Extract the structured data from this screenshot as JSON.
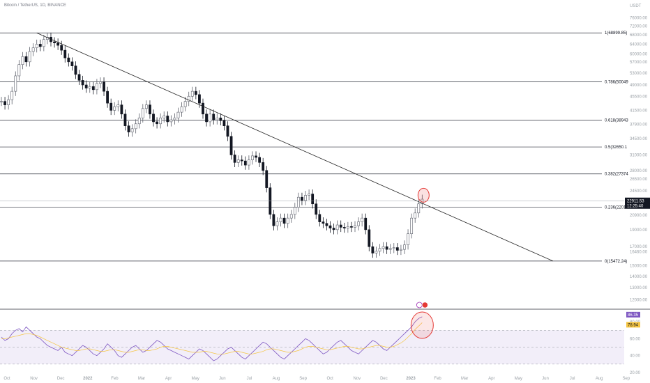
{
  "chart_title": "Bitcoin / TetherUS, 1D, BINANCE",
  "currency": "USDT",
  "chart_data": [
    {
      "type": "candlestick",
      "title": "Bitcoin / TetherUS, 1D, BINANCE",
      "y_scale": "log",
      "ylim": [
        11500,
        78000
      ],
      "y_ticks": [
        "76000.00",
        "72000.00",
        "68000.00",
        "64000.00",
        "60000.00",
        "57000.00",
        "53000.00",
        "49000.00",
        "45500.00",
        "41500.00",
        "37900.00",
        "34500.00",
        "31000.00",
        "28000.00",
        "26500.00",
        "24500.00",
        "20900.00",
        "19000.00",
        "17000.00",
        "16460.00",
        "15000.00",
        "14000.00",
        "13000.00",
        "12000.00"
      ],
      "x_ticks": [
        "Oct",
        "Nov",
        "Dec",
        "2022",
        "Feb",
        "Mar",
        "Apr",
        "May",
        "Jun",
        "Jul",
        "Aug",
        "Sep",
        "Oct",
        "Nov",
        "Dec",
        "2023",
        "Feb",
        "Mar",
        "Apr",
        "May",
        "Jun",
        "Jul",
        "Aug",
        "Sep"
      ],
      "series_close_path": [
        [
          0,
          44000
        ],
        [
          1,
          43000
        ],
        [
          2,
          44500
        ],
        [
          3,
          47000
        ],
        [
          4,
          52000
        ],
        [
          5,
          56000
        ],
        [
          6,
          59000
        ],
        [
          7,
          57000
        ],
        [
          8,
          61000
        ],
        [
          9,
          62500
        ],
        [
          10,
          64000
        ],
        [
          11,
          63000
        ],
        [
          12,
          66000
        ],
        [
          13,
          67000
        ],
        [
          14,
          65000
        ],
        [
          15,
          64500
        ],
        [
          16,
          63500
        ],
        [
          17,
          61500
        ],
        [
          18,
          58500
        ],
        [
          19,
          57000
        ],
        [
          20,
          55500
        ],
        [
          21,
          52500
        ],
        [
          22,
          50500
        ],
        [
          23,
          49000
        ],
        [
          24,
          48000
        ],
        [
          25,
          48500
        ],
        [
          26,
          47500
        ],
        [
          27,
          49500
        ],
        [
          28,
          50000
        ],
        [
          29,
          47000
        ],
        [
          30,
          43500
        ],
        [
          31,
          41500
        ],
        [
          32,
          42500
        ],
        [
          33,
          43000
        ],
        [
          34,
          40500
        ],
        [
          35,
          37500
        ],
        [
          36,
          36000
        ],
        [
          37,
          36800
        ],
        [
          38,
          38000
        ],
        [
          39,
          39500
        ],
        [
          40,
          42000
        ],
        [
          41,
          43000
        ],
        [
          42,
          40500
        ],
        [
          43,
          38500
        ],
        [
          44,
          38000
        ],
        [
          45,
          39500
        ],
        [
          46,
          40000
        ],
        [
          47,
          38500
        ],
        [
          48,
          39000
        ],
        [
          49,
          39500
        ],
        [
          50,
          41000
        ],
        [
          51,
          42500
        ],
        [
          52,
          44000
        ],
        [
          53,
          45500
        ],
        [
          54,
          47000
        ],
        [
          55,
          46000
        ],
        [
          56,
          43500
        ],
        [
          57,
          40500
        ],
        [
          58,
          38500
        ],
        [
          59,
          40500
        ],
        [
          60,
          39000
        ],
        [
          61,
          39500
        ],
        [
          62,
          38800
        ],
        [
          63,
          37500
        ],
        [
          64,
          35000
        ],
        [
          65,
          31000
        ],
        [
          66,
          29500
        ],
        [
          67,
          30000
        ],
        [
          68,
          29800
        ],
        [
          69,
          29000
        ],
        [
          70,
          30000
        ],
        [
          71,
          30800
        ],
        [
          72,
          30500
        ],
        [
          73,
          29500
        ],
        [
          74,
          28000
        ],
        [
          75,
          25000
        ],
        [
          76,
          21000
        ],
        [
          77,
          19500
        ],
        [
          78,
          20000
        ],
        [
          79,
          20500
        ],
        [
          80,
          19800
        ],
        [
          81,
          20500
        ],
        [
          82,
          21000
        ],
        [
          83,
          22000
        ],
        [
          84,
          23500
        ],
        [
          85,
          23000
        ],
        [
          86,
          23800
        ],
        [
          87,
          24000
        ],
        [
          88,
          22500
        ],
        [
          89,
          21000
        ],
        [
          90,
          20000
        ],
        [
          91,
          19800
        ],
        [
          92,
          19500
        ],
        [
          93,
          19200
        ],
        [
          94,
          19000
        ],
        [
          95,
          19600
        ],
        [
          96,
          19300
        ],
        [
          97,
          19200
        ],
        [
          98,
          19400
        ],
        [
          99,
          19300
        ],
        [
          100,
          19500
        ],
        [
          101,
          20000
        ],
        [
          102,
          20500
        ],
        [
          103,
          19000
        ],
        [
          104,
          17000
        ],
        [
          105,
          16300
        ],
        [
          106,
          16500
        ],
        [
          107,
          16800
        ],
        [
          108,
          17000
        ],
        [
          109,
          16700
        ],
        [
          110,
          16800
        ],
        [
          111,
          16900
        ],
        [
          112,
          16600
        ],
        [
          113,
          16700
        ],
        [
          114,
          17200
        ],
        [
          115,
          18500
        ],
        [
          116,
          20500
        ],
        [
          117,
          21200
        ],
        [
          118,
          22500
        ],
        [
          119,
          23200
        ]
      ],
      "fib_levels": [
        {
          "label": "1(68899.85)",
          "value": 68899.85
        },
        {
          "label": "0.786(50049",
          "value": 50049
        },
        {
          "label": "0.618(38943",
          "value": 38943
        },
        {
          "label": "0.5(32650.1",
          "value": 32650.1
        },
        {
          "label": "0.382(27374",
          "value": 27374
        },
        {
          "label": "0.236(22010",
          "value": 22010
        },
        {
          "label": "0(15472.24)",
          "value": 15472.24
        }
      ],
      "trendline": {
        "from": {
          "t": 10,
          "price": 68899.85
        },
        "to": {
          "t": 173,
          "price": 15472.24
        }
      },
      "last_price": {
        "label": "22911.53",
        "value": 22911.53,
        "timer": "12:25:40"
      },
      "annotations": [
        {
          "type": "circle",
          "color": "#e53935",
          "target": "price breakout at trendline"
        }
      ]
    },
    {
      "type": "line",
      "title": "",
      "panel": "RSI",
      "ylim": [
        20,
        90
      ],
      "y_ticks": [
        "80.00",
        "60.00",
        "40.00",
        "20.00"
      ],
      "bands": {
        "upper": 70,
        "lower": 30,
        "mid": 50
      },
      "series": [
        {
          "name": "",
          "color": "#7e57c2",
          "last_value_label": "86.35",
          "values": [
            62,
            58,
            60,
            66,
            70,
            72,
            68,
            74,
            70,
            66,
            62,
            60,
            56,
            52,
            50,
            48,
            46,
            50,
            44,
            42,
            40,
            44,
            48,
            52,
            50,
            46,
            42,
            40,
            44,
            48,
            54,
            50,
            46,
            40,
            38,
            42,
            46,
            50,
            52,
            48,
            44,
            46,
            50,
            54,
            58,
            56,
            52,
            48,
            46,
            44,
            42,
            40,
            38,
            36,
            40,
            44,
            48,
            46,
            42,
            38,
            34,
            36,
            40,
            44,
            48,
            50,
            46,
            42,
            38,
            36,
            40,
            44,
            48,
            52,
            56,
            54,
            50,
            46,
            42,
            38,
            36,
            40,
            44,
            48,
            52,
            56,
            60,
            58,
            54,
            50,
            46,
            42,
            44,
            48,
            52,
            56,
            58,
            54,
            50,
            46,
            44,
            42,
            46,
            50,
            54,
            58,
            56,
            52,
            48,
            46,
            50,
            54,
            58,
            62,
            66,
            70,
            74,
            80,
            84,
            86
          ]
        },
        {
          "name": "",
          "color": "#f5c542",
          "last_value_label": "78.94",
          "values": [
            60,
            60,
            61,
            62,
            63,
            64,
            65,
            66,
            66,
            65,
            64,
            62,
            60,
            58,
            56,
            54,
            52,
            50,
            49,
            48,
            47,
            46,
            46,
            47,
            48,
            48,
            47,
            46,
            45,
            45,
            46,
            47,
            47,
            46,
            45,
            44,
            44,
            45,
            46,
            47,
            47,
            46,
            46,
            47,
            48,
            50,
            51,
            51,
            50,
            49,
            48,
            47,
            46,
            45,
            44,
            44,
            44,
            45,
            45,
            44,
            43,
            42,
            42,
            42,
            43,
            44,
            45,
            45,
            44,
            43,
            42,
            42,
            43,
            44,
            45,
            47,
            48,
            48,
            47,
            46,
            45,
            44,
            44,
            45,
            46,
            48,
            50,
            51,
            51,
            50,
            49,
            48,
            47,
            47,
            48,
            49,
            50,
            51,
            51,
            50,
            49,
            48,
            48,
            49,
            50,
            51,
            52,
            52,
            51,
            50,
            50,
            51,
            53,
            55,
            58,
            62,
            66,
            71,
            75,
            79
          ]
        }
      ],
      "annotations": [
        {
          "type": "circle",
          "color": "#e53935",
          "target": "RSI overbought spike"
        }
      ]
    }
  ]
}
